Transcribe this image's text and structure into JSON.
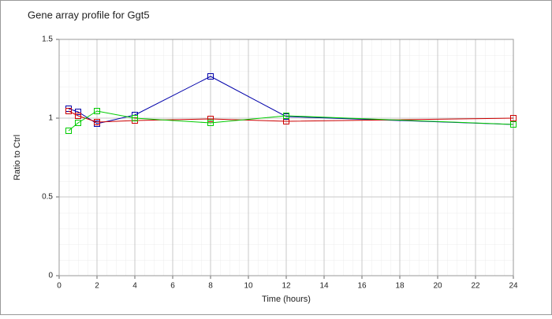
{
  "chart_data": {
    "type": "line",
    "title": "Gene array profile for Ggt5",
    "x_label": "Time (hours)",
    "y_label": "Ratio to Ctrl",
    "x": [
      0.5,
      1,
      2,
      4,
      8,
      12,
      24
    ],
    "series": [
      {
        "color": "#0000aa",
        "values": [
          1.06,
          1.04,
          0.965,
          1.02,
          1.265,
          1.01,
          0.96
        ]
      },
      {
        "color": "#cc0000",
        "values": [
          1.045,
          1.015,
          0.975,
          0.985,
          0.995,
          0.98,
          1.0
        ]
      },
      {
        "color": "#00cc00",
        "values": [
          0.92,
          0.97,
          1.045,
          1.0,
          0.97,
          1.015,
          0.96
        ]
      }
    ],
    "xlim": [
      0,
      24
    ],
    "xticks": [
      0,
      2,
      4,
      6,
      8,
      10,
      12,
      14,
      16,
      18,
      20,
      22,
      24
    ],
    "ylim": [
      0,
      1.5
    ],
    "yticks": [
      0,
      0.5,
      1,
      1.5
    ],
    "grid": true
  }
}
